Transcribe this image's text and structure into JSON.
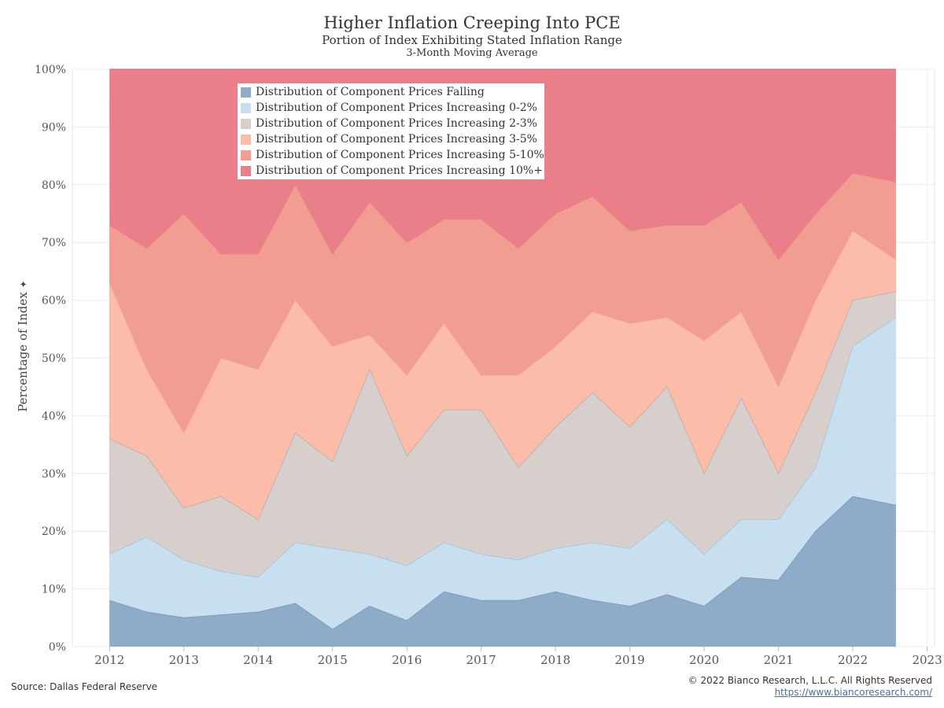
{
  "title": "Higher Inflation Creeping Into PCE",
  "subtitle": "Portion of Index Exhibiting Stated Inflation Range",
  "subtitle2": "3-Month Moving Average",
  "ylabel": "Percentage of Index",
  "ylabel_icon": "pin-icon",
  "source": "Source: Dallas Federal Reserve",
  "copyright": "© 2022 Bianco Research, L.L.C. All Rights Reserved",
  "website": "https://www.biancoresearch.com/",
  "chart_data": {
    "type": "area",
    "stacked": true,
    "x": [
      2012.0,
      2012.5,
      2013.0,
      2013.5,
      2014.0,
      2014.5,
      2015.0,
      2015.5,
      2016.0,
      2016.5,
      2017.0,
      2017.5,
      2018.0,
      2018.5,
      2019.0,
      2019.5,
      2020.0,
      2020.5,
      2021.0,
      2021.5,
      2022.0,
      2022.58
    ],
    "xlim": [
      2011.5,
      2023.1
    ],
    "ylim": [
      0,
      100
    ],
    "x_ticks": [
      "2012",
      "2013",
      "2014",
      "2015",
      "2016",
      "2017",
      "2018",
      "2019",
      "2020",
      "2021",
      "2022",
      "2023"
    ],
    "y_ticks": [
      "0%",
      "10%",
      "20%",
      "30%",
      "40%",
      "50%",
      "60%",
      "70%",
      "80%",
      "90%",
      "100%"
    ],
    "grid": true,
    "legend_position": "top-left",
    "legend": [
      "Distribution of Component Prices Falling",
      "Distribution of Component Prices Increasing 0-2%",
      "Distribution of Component Prices Increasing 2-3%",
      "Distribution of Component Prices Increasing 3-5%",
      "Distribution of Component Prices Increasing 5-10%",
      "Distribution of Component Prices Increasing 10%+"
    ],
    "colors": [
      "#8eacc9",
      "#c7dfee",
      "#d6cfcc",
      "#fbbcaa",
      "#f19d92",
      "#ea7f8b"
    ],
    "line_colors": [
      "#7f9dba",
      "#a9c8de",
      "#bdb3b0",
      "#f0a696",
      "#e2877c",
      "#d8606f"
    ],
    "cumulative_tops": [
      [
        8,
        6,
        5,
        5.5,
        6,
        7.5,
        3,
        7,
        4.5,
        9.5,
        8,
        8,
        9.5,
        8,
        7,
        9,
        7,
        12,
        11.5,
        20,
        26,
        24.5
      ],
      [
        16,
        19,
        15,
        13,
        12,
        18,
        17,
        16,
        14,
        18,
        16,
        15,
        17,
        18,
        17,
        22,
        16,
        22,
        22,
        31,
        52,
        57
      ],
      [
        36,
        33,
        24,
        26,
        22,
        37,
        32,
        48,
        33,
        41,
        41,
        31,
        38,
        44,
        38,
        45,
        30,
        43,
        30,
        44,
        60,
        61.5
      ],
      [
        63,
        48,
        37,
        50,
        48,
        60,
        52,
        54,
        47,
        56,
        47,
        47,
        52,
        58,
        56,
        57,
        53,
        58,
        45,
        60,
        72,
        67
      ],
      [
        73,
        69,
        75,
        68,
        68,
        80,
        68,
        77,
        70,
        74,
        74,
        69,
        75,
        78,
        72,
        73,
        73,
        77,
        67,
        75,
        82,
        80.5
      ],
      [
        100,
        100,
        100,
        100,
        100,
        100,
        100,
        100,
        100,
        100,
        100,
        100,
        100,
        100,
        100,
        100,
        100,
        100,
        100,
        100,
        100,
        100
      ]
    ]
  }
}
